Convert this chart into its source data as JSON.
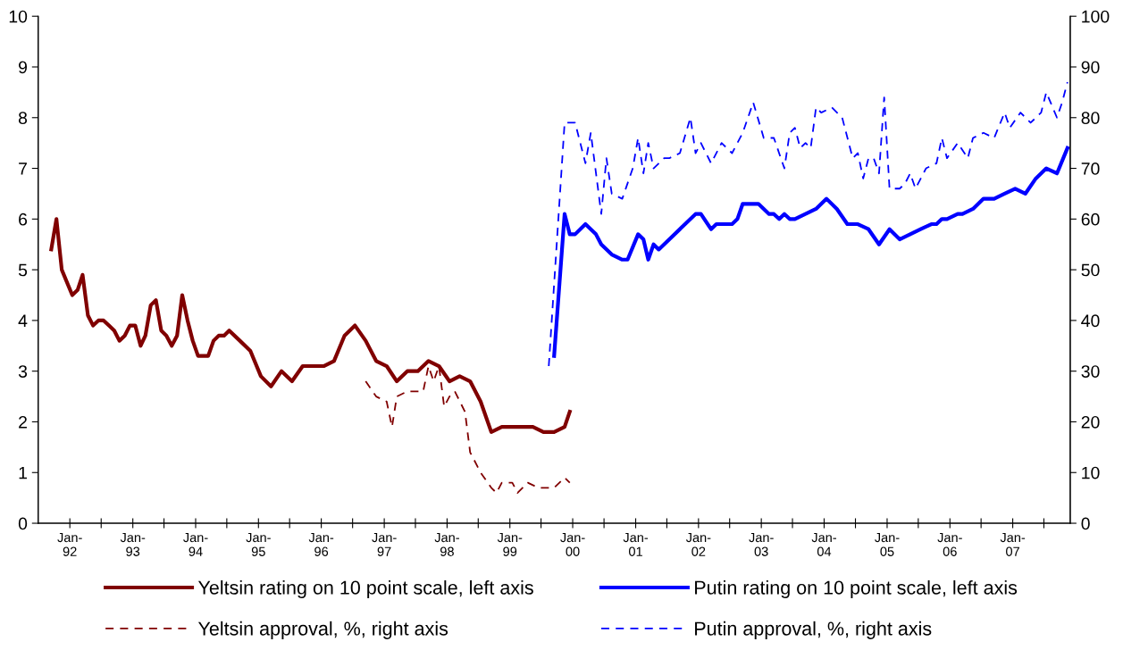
{
  "chart_data": {
    "type": "line",
    "xlim": [
      "1991-07",
      "2007-12"
    ],
    "xticks": [
      {
        "value": "1992-01",
        "label": "Jan-\n92"
      },
      {
        "value": "1992-07",
        "label": null
      },
      {
        "value": "1993-01",
        "label": "Jan-\n93"
      },
      {
        "value": "1993-07",
        "label": null
      },
      {
        "value": "1994-01",
        "label": "Jan-\n94"
      },
      {
        "value": "1994-07",
        "label": null
      },
      {
        "value": "1995-01",
        "label": "Jan-\n95"
      },
      {
        "value": "1995-07",
        "label": null
      },
      {
        "value": "1996-01",
        "label": "Jan-\n96"
      },
      {
        "value": "1996-07",
        "label": null
      },
      {
        "value": "1997-01",
        "label": "Jan-\n97"
      },
      {
        "value": "1997-07",
        "label": null
      },
      {
        "value": "1998-01",
        "label": "Jan-\n98"
      },
      {
        "value": "1998-07",
        "label": null
      },
      {
        "value": "1999-01",
        "label": "Jan-\n99"
      },
      {
        "value": "1999-07",
        "label": null
      },
      {
        "value": "2000-01",
        "label": "Jan-\n00"
      },
      {
        "value": "2000-07",
        "label": null
      },
      {
        "value": "2001-01",
        "label": "Jan-\n01"
      },
      {
        "value": "2001-07",
        "label": null
      },
      {
        "value": "2002-01",
        "label": "Jan-\n02"
      },
      {
        "value": "2002-07",
        "label": null
      },
      {
        "value": "2003-01",
        "label": "Jan-\n03"
      },
      {
        "value": "2003-07",
        "label": null
      },
      {
        "value": "2004-01",
        "label": "Jan-\n04"
      },
      {
        "value": "2004-07",
        "label": null
      },
      {
        "value": "2005-01",
        "label": "Jan-\n05"
      },
      {
        "value": "2005-07",
        "label": null
      },
      {
        "value": "2006-01",
        "label": "Jan-\n06"
      },
      {
        "value": "2006-07",
        "label": null
      },
      {
        "value": "2007-01",
        "label": "Jan-\n07"
      },
      {
        "value": "2007-07",
        "label": null
      }
    ],
    "ylim": [
      0,
      10
    ],
    "yticks": [
      0,
      1,
      2,
      3,
      4,
      5,
      6,
      7,
      8,
      9,
      10
    ],
    "y2lim": [
      0,
      100
    ],
    "y2ticks": [
      0,
      10,
      20,
      30,
      40,
      50,
      60,
      70,
      80,
      90,
      100
    ],
    "grid": false,
    "legend": "bottom",
    "marker": "none",
    "series": [
      {
        "name": "Yeltsin rating on 10 point scale, left axis",
        "color": "#800000",
        "line_style": "solid",
        "x": [
          "1991-09",
          "1991-10",
          "1991-11",
          "1992-01",
          "1992-02",
          "1992-03",
          "1992-04",
          "1992-05",
          "1992-06",
          "1992-07",
          "1992-08",
          "1992-09",
          "1992-10",
          "1992-11",
          "1992-12",
          "1993-01",
          "1993-02",
          "1993-03",
          "1993-04",
          "1993-05",
          "1993-06",
          "1993-07",
          "1993-08",
          "1993-09",
          "1993-10",
          "1993-11",
          "1993-12",
          "1994-01",
          "1994-03",
          "1994-04",
          "1994-05",
          "1994-06",
          "1994-07",
          "1994-09",
          "1994-11",
          "1995-01",
          "1995-03",
          "1995-05",
          "1995-07",
          "1995-09",
          "1995-11",
          "1996-01",
          "1996-03",
          "1996-05",
          "1996-07",
          "1996-09",
          "1996-11",
          "1997-01",
          "1997-03",
          "1997-05",
          "1997-07",
          "1997-09",
          "1997-11",
          "1998-01",
          "1998-03",
          "1998-05",
          "1998-07",
          "1998-09",
          "1998-11",
          "1999-01",
          "1999-03",
          "1999-05",
          "1999-07",
          "1999-09",
          "1999-11",
          "1999-12"
        ],
        "values": [
          5.4,
          6.0,
          5.0,
          4.5,
          4.6,
          4.9,
          4.1,
          3.9,
          4.0,
          4.0,
          3.9,
          3.8,
          3.6,
          3.7,
          3.9,
          3.9,
          3.5,
          3.7,
          4.3,
          4.4,
          3.8,
          3.7,
          3.5,
          3.7,
          4.5,
          4.0,
          3.6,
          3.3,
          3.3,
          3.6,
          3.7,
          3.7,
          3.8,
          3.6,
          3.4,
          2.9,
          2.7,
          3.0,
          2.8,
          3.1,
          3.1,
          3.1,
          3.2,
          3.7,
          3.9,
          3.6,
          3.2,
          3.1,
          2.8,
          3.0,
          3.0,
          3.2,
          3.1,
          2.8,
          2.9,
          2.8,
          2.4,
          1.8,
          1.9,
          1.9,
          1.9,
          1.9,
          1.8,
          1.8,
          1.9,
          2.2
        ]
      },
      {
        "name": "Putin rating on 10 point scale, left axis",
        "color": "#0000ff",
        "line_style": "solid",
        "x": [
          "1999-09",
          "1999-11",
          "1999-12",
          "2000-01",
          "2000-03",
          "2000-05",
          "2000-06",
          "2000-08",
          "2000-10",
          "2000-11",
          "2001-01",
          "2001-02",
          "2001-03",
          "2001-04",
          "2001-05",
          "2001-10",
          "2001-12",
          "2002-01",
          "2002-03",
          "2002-04",
          "2002-05",
          "2002-06",
          "2002-07",
          "2002-08",
          "2002-09",
          "2002-10",
          "2002-11",
          "2002-12",
          "2003-02",
          "2003-03",
          "2003-04",
          "2003-05",
          "2003-06",
          "2003-07",
          "2003-11",
          "2004-01",
          "2004-03",
          "2004-05",
          "2004-07",
          "2004-09",
          "2004-11",
          "2005-01",
          "2005-03",
          "2005-05",
          "2005-07",
          "2005-09",
          "2005-10",
          "2005-11",
          "2005-12",
          "2006-02",
          "2006-03",
          "2006-05",
          "2006-07",
          "2006-09",
          "2006-11",
          "2007-01",
          "2007-03",
          "2007-05",
          "2007-07",
          "2007-09",
          "2007-11"
        ],
        "values": [
          3.3,
          6.1,
          5.7,
          5.7,
          5.9,
          5.7,
          5.5,
          5.3,
          5.2,
          5.2,
          5.7,
          5.6,
          5.2,
          5.5,
          5.4,
          5.9,
          6.1,
          6.1,
          5.8,
          5.9,
          5.9,
          5.9,
          5.9,
          6.0,
          6.3,
          6.3,
          6.3,
          6.3,
          6.1,
          6.1,
          6.0,
          6.1,
          6.0,
          6.0,
          6.2,
          6.4,
          6.2,
          5.9,
          5.9,
          5.8,
          5.5,
          5.8,
          5.6,
          5.7,
          5.8,
          5.9,
          5.9,
          6.0,
          6.0,
          6.1,
          6.1,
          6.2,
          6.4,
          6.4,
          6.5,
          6.6,
          6.5,
          6.8,
          7.0,
          6.9,
          7.4
        ]
      },
      {
        "name": "Yeltsin approval, %, right axis",
        "color": "#800000",
        "line_style": "dashed",
        "axis": "y2",
        "x": [
          "1996-09",
          "1996-11",
          "1997-01",
          "1997-02",
          "1997-03",
          "1997-05",
          "1997-08",
          "1997-09",
          "1997-10",
          "1997-11",
          "1997-12",
          "1998-01",
          "1998-02",
          "1998-04",
          "1998-05",
          "1998-07",
          "1998-09",
          "1998-10",
          "1998-11",
          "1999-01",
          "1999-02",
          "1999-04",
          "1999-06",
          "1999-09",
          "1999-11",
          "1999-12"
        ],
        "values": [
          28,
          25,
          24,
          19,
          25,
          26,
          26,
          31,
          28,
          31,
          23,
          25,
          26,
          22,
          14,
          10,
          7,
          6,
          8,
          8,
          6,
          8,
          7,
          7,
          9,
          8
        ]
      },
      {
        "name": "Putin approval, %, right axis",
        "color": "#0000ff",
        "line_style": "dashed",
        "axis": "y2",
        "x": [
          "1999-08",
          "1999-11",
          "1999-12",
          "2000-01",
          "2000-03",
          "2000-04",
          "2000-06",
          "2000-07",
          "2000-08",
          "2000-10",
          "2000-12",
          "2001-01",
          "2001-02",
          "2001-03",
          "2001-04",
          "2001-06",
          "2001-07",
          "2001-09",
          "2001-11",
          "2001-12",
          "2002-01",
          "2002-03",
          "2002-05",
          "2002-07",
          "2002-09",
          "2002-11",
          "2003-01",
          "2003-03",
          "2003-05",
          "2003-06",
          "2003-07",
          "2003-08",
          "2003-09",
          "2003-10",
          "2003-11",
          "2003-12",
          "2004-02",
          "2004-04",
          "2004-06",
          "2004-07",
          "2004-08",
          "2004-09",
          "2004-10",
          "2004-11",
          "2004-12",
          "2005-01",
          "2005-03",
          "2005-04",
          "2005-05",
          "2005-06",
          "2005-08",
          "2005-10",
          "2005-11",
          "2005-12",
          "2006-02",
          "2006-04",
          "2006-05",
          "2006-07",
          "2006-09",
          "2006-11",
          "2006-12",
          "2007-02",
          "2007-04",
          "2007-06",
          "2007-07",
          "2007-09",
          "2007-10",
          "2007-11"
        ],
        "values": [
          31,
          79,
          79,
          79,
          71,
          77,
          61,
          72,
          65,
          64,
          70,
          76,
          69,
          75,
          70,
          72,
          72,
          73,
          80,
          73,
          75,
          71,
          75,
          73,
          77,
          83,
          76,
          76,
          70,
          77,
          78,
          74,
          75,
          74,
          82,
          81,
          82,
          80,
          72,
          73,
          68,
          72,
          72,
          69,
          84,
          66,
          66,
          67,
          69,
          66,
          70,
          71,
          76,
          72,
          75,
          72,
          76,
          77,
          76,
          81,
          78,
          81,
          79,
          81,
          85,
          80,
          83,
          87
        ]
      }
    ]
  }
}
